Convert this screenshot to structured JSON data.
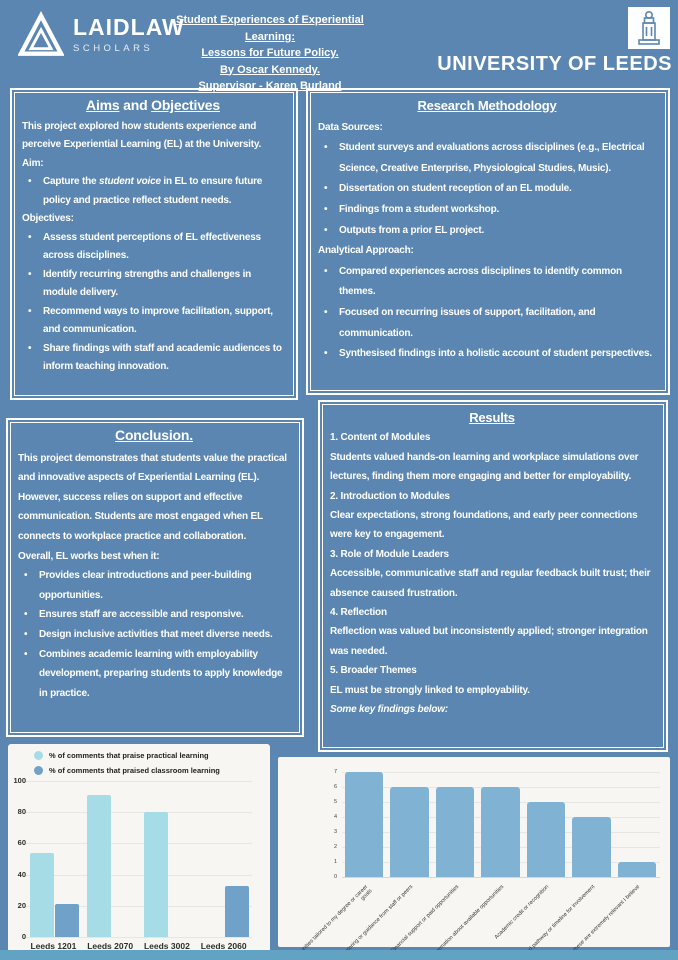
{
  "colors": {
    "background": "#5b86b1",
    "panel_border": "#ffffff",
    "text": "#ffffff",
    "chart_background": "#f7f6f2",
    "bottom_strip": "#62a3c4"
  },
  "header": {
    "laidlaw_name": "LAIDLAW",
    "laidlaw_sub": "SCHOLARS",
    "title_lines": [
      "Student Experiences of Experiential Learning:",
      "Lessons for Future Policy.",
      "By Oscar Kennedy.",
      "Supervisor - Karen Burland"
    ],
    "leeds_name": "UNIVERSITY OF LEEDS"
  },
  "aims": {
    "title": [
      "Aims",
      " and ",
      "Objectives"
    ],
    "intro": "This project explored how students experience and perceive Experiential Learning (EL) at the University.",
    "aim_label": "Aim:",
    "aim_bullet": {
      "pre": "Capture the ",
      "italic": "student voice",
      "post": " in EL to ensure future policy and practice reflect student needs."
    },
    "objectives_label": "Objectives:",
    "objective_bullets": [
      "Assess student perceptions of EL effectiveness across disciplines.",
      "Identify recurring strengths and challenges in module delivery.",
      "Recommend ways to improve facilitation, support, and communication.",
      "Share findings with staff and academic audiences to inform teaching innovation."
    ]
  },
  "methodology": {
    "title": "Research Methodology",
    "data_sources_label": "Data Sources:",
    "data_sources": [
      "Student surveys and evaluations across disciplines (e.g., Electrical Science, Creative Enterprise, Physiological Studies, Music).",
      "Dissertation on student reception of an EL module.",
      "Findings from a student workshop.",
      "Outputs from a prior EL project."
    ],
    "approach_label": "Analytical Approach:",
    "approach": [
      "Compared experiences across disciplines to identify common themes.",
      "Focused on recurring issues of support, facilitation, and communication.",
      "Synthesised findings into a holistic account of student perspectives."
    ]
  },
  "conclusion": {
    "title": "Conclusion.",
    "body": "This project demonstrates that students value the practical and innovative aspects of Experiential Learning (EL). However, success relies on support and effective communication. Students are most engaged when EL connects to workplace practice and collaboration.",
    "lead_in": "Overall, EL works best when it:",
    "bullets": [
      "Provides clear introductions and peer-building opportunities.",
      "Ensures staff are accessible and responsive.",
      "Design inclusive activities that meet diverse needs.",
      "Combines academic learning with employability development, preparing students to apply knowledge in practice."
    ]
  },
  "results": {
    "title": "Results",
    "items": [
      {
        "heading": "1. Content of Modules",
        "body": "Students valued hands-on learning and workplace simulations over lectures, finding them more engaging and better for employability."
      },
      {
        "heading": "2. Introduction to Modules",
        "body": "Clear expectations, strong foundations, and early peer connections were key to engagement."
      },
      {
        "heading": "3. Role of Module Leaders",
        "body": "Accessible, communicative staff and regular feedback built trust; their absence caused frustration."
      },
      {
        "heading": "4. Reflection",
        "body": "Reflection was valued but inconsistently applied; stronger integration was needed."
      },
      {
        "heading": "5. Broader Themes",
        "body": "EL must be strongly linked to employability."
      }
    ],
    "footer": "Some key findings below:"
  },
  "chart_data": [
    {
      "type": "bar",
      "title": "",
      "categories": [
        "Leeds 1201",
        "Leeds 2070",
        "Leeds 3002",
        "Leeds 2060"
      ],
      "series": [
        {
          "name": "% of comments that praise practical learning",
          "color": "#a6dce6",
          "values": [
            54,
            91,
            80,
            0
          ]
        },
        {
          "name": "% of comments that praised classroom learning",
          "color": "#6fa1c9",
          "values": [
            21,
            0,
            0,
            33
          ]
        }
      ],
      "ylim": [
        0,
        100
      ],
      "yticks": [
        0,
        20,
        40,
        60,
        80,
        100
      ],
      "grid": true,
      "legend_position": "top-left"
    },
    {
      "type": "bar",
      "title": "",
      "categories": [
        "Opportunities tailored to my degree or career goals",
        "Mentoring or guidance from staff or peers",
        "Financial support or paid opportunities",
        "Clearer information about available opportunities",
        "Academic credit or recognition",
        "A structured pathway or timeline for involvement",
        "All of these are extremely relevant I believe"
      ],
      "values": [
        7,
        6,
        6,
        6,
        5,
        4,
        1
      ],
      "bar_color": "#7fb2d3",
      "ylim": [
        0,
        7
      ],
      "yticks": [
        0,
        1,
        2,
        3,
        4,
        5,
        6,
        7
      ],
      "grid": true,
      "legend_position": "none"
    }
  ]
}
